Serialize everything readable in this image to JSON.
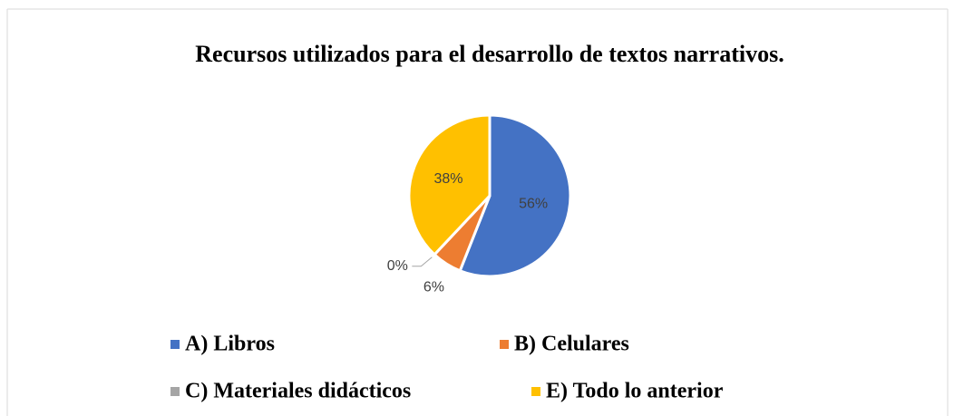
{
  "chart_data": {
    "type": "pie",
    "title": "Recursos utilizados para el desarrollo de textos narrativos.",
    "categories": [
      "A) Libros",
      "B) Celulares",
      "C) Materiales didácticos",
      "E) Todo lo anterior"
    ],
    "values": [
      56,
      6,
      0,
      38
    ],
    "value_labels": [
      "56%",
      "6%",
      "0%",
      "38%"
    ],
    "colors": [
      "#4472c4",
      "#ed7d31",
      "#a5a5a5",
      "#ffc000"
    ],
    "legend": "bottom"
  }
}
